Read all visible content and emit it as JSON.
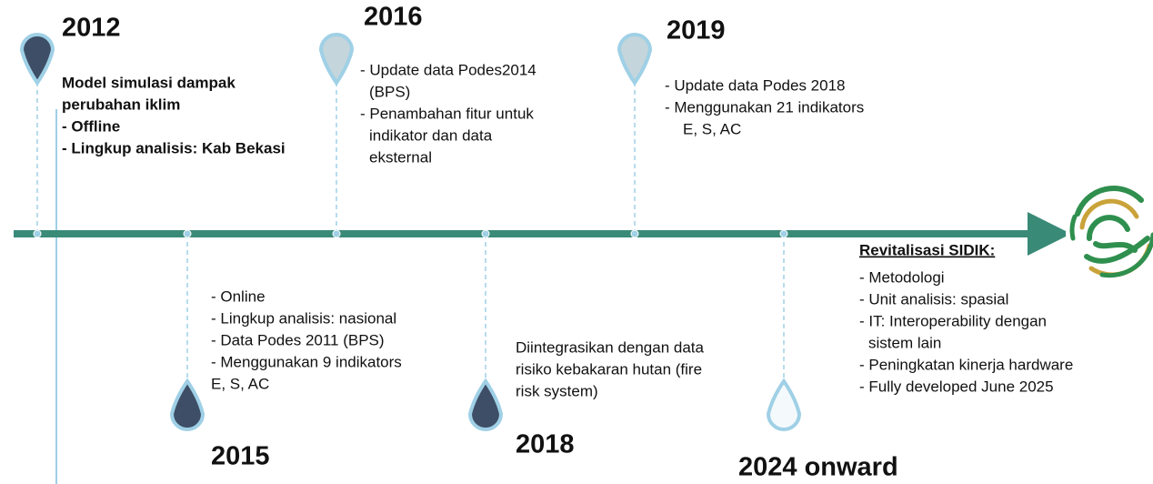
{
  "events": [
    {
      "year": "2012",
      "lines": [
        "Model simulasi dampak",
        "perubahan iklim",
        "- Offline",
        "- Lingkup analisis: Kab Bekasi"
      ]
    },
    {
      "year": "2015",
      "lines": [
        "- Online",
        "- Lingkup analisis: nasional",
        "- Data Podes 2011 (BPS)",
        "- Menggunakan 9 indikators",
        "E, S, AC"
      ]
    },
    {
      "year": "2016",
      "lines": [
        "- Update data Podes2014",
        "(BPS)",
        "- Penambahan fitur untuk",
        "indikator dan data",
        "eksternal"
      ]
    },
    {
      "year": "2018",
      "lines": [
        "Diintegrasikan dengan data",
        "risiko kebakaran hutan (fire",
        "risk system)"
      ]
    },
    {
      "year": "2019",
      "lines": [
        "- Update data Podes 2018",
        "- Menggunakan 21 indikators",
        "E, S, AC"
      ]
    },
    {
      "year": "2024 onward",
      "heading": "Revitalisasi SIDIK:",
      "lines": [
        "- Metodologi",
        "- Unit analisis: spasial",
        "- IT: Interoperability dengan",
        "sistem lain",
        "- Peningkatan kinerja hardware",
        "- Fully developed June 2025"
      ]
    }
  ]
}
